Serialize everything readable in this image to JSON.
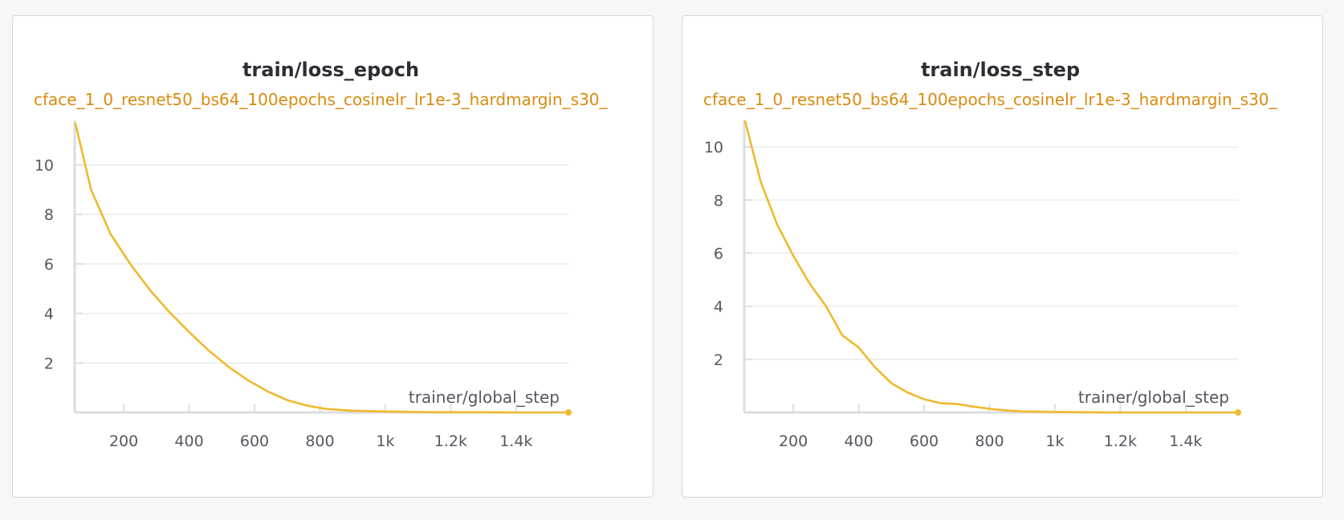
{
  "theme": {
    "series_color": "#f0b92f",
    "run_name_color": "#d98b0f"
  },
  "panels": [
    {
      "title": "train/loss_epoch",
      "run_name": "cface_1_0_resnet50_bs64_100epochs_cosinelr_lr1e-3_hardmargin_s30_",
      "x_axis_title": "trainer/global_step"
    },
    {
      "title": "train/loss_step",
      "run_name": "cface_1_0_resnet50_bs64_100epochs_cosinelr_lr1e-3_hardmargin_s30_",
      "x_axis_title": "trainer/global_step"
    }
  ],
  "chart_data": [
    {
      "type": "line",
      "title": "train/loss_epoch",
      "xlabel": "trainer/global_step",
      "ylabel": "",
      "xlim": [
        50,
        1560
      ],
      "ylim": [
        0,
        11.8
      ],
      "x_ticks": [
        200,
        400,
        600,
        800,
        1000,
        1200,
        1400
      ],
      "x_tick_labels": [
        "200",
        "400",
        "600",
        "800",
        "1k",
        "1.2k",
        "1.4k"
      ],
      "y_ticks": [
        2,
        4,
        6,
        8,
        10
      ],
      "y_tick_labels": [
        "2",
        "4",
        "6",
        "8",
        "10"
      ],
      "grid": true,
      "legend": "none",
      "series": [
        {
          "name": "cface_1_0_resnet50_bs64_100epochs_cosinelr_lr1e-3_hardmargin_s30_",
          "x": [
            52,
            100,
            160,
            220,
            280,
            340,
            400,
            460,
            520,
            580,
            640,
            700,
            760,
            820,
            900,
            1000,
            1100,
            1200,
            1300,
            1400,
            1560
          ],
          "y": [
            11.7,
            9.0,
            7.2,
            6.0,
            4.95,
            4.05,
            3.25,
            2.5,
            1.85,
            1.3,
            0.85,
            0.5,
            0.28,
            0.14,
            0.07,
            0.04,
            0.02,
            0.01,
            0.01,
            0.0,
            0.0
          ]
        }
      ]
    },
    {
      "type": "line",
      "title": "train/loss_step",
      "xlabel": "trainer/global_step",
      "ylabel": "",
      "xlim": [
        50,
        1560
      ],
      "ylim": [
        0,
        11
      ],
      "x_ticks": [
        200,
        400,
        600,
        800,
        1000,
        1200,
        1400
      ],
      "x_tick_labels": [
        "200",
        "400",
        "600",
        "800",
        "1k",
        "1.2k",
        "1.4k"
      ],
      "y_ticks": [
        2,
        4,
        6,
        8,
        10
      ],
      "y_tick_labels": [
        "2",
        "4",
        "6",
        "8",
        "10"
      ],
      "grid": true,
      "legend": "none",
      "series": [
        {
          "name": "cface_1_0_resnet50_bs64_100epochs_cosinelr_lr1e-3_hardmargin_s30_",
          "x": [
            52,
            100,
            150,
            200,
            250,
            300,
            350,
            400,
            450,
            500,
            550,
            600,
            650,
            700,
            750,
            800,
            850,
            900,
            1000,
            1100,
            1200,
            1300,
            1400,
            1560
          ],
          "y": [
            11.0,
            8.7,
            7.1,
            5.9,
            4.85,
            4.0,
            2.9,
            2.45,
            1.7,
            1.1,
            0.75,
            0.5,
            0.35,
            0.32,
            0.22,
            0.14,
            0.08,
            0.04,
            0.02,
            0.01,
            0.0,
            0.0,
            0.0,
            0.0
          ]
        }
      ]
    }
  ]
}
